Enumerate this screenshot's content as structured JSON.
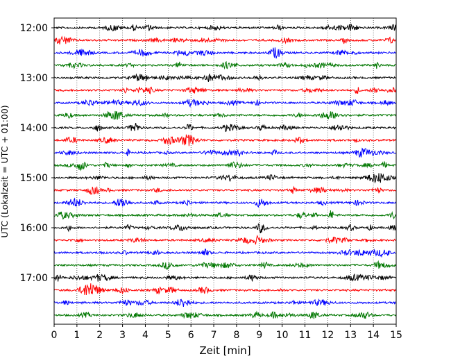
{
  "chart_data": {
    "type": "line",
    "xlabel": "Zeit  [min]",
    "ylabel": "UTC (Lokalzeit = UTC + 01:00)",
    "xlim": [
      0,
      15
    ],
    "xticks": [
      "0",
      "1",
      "2",
      "3",
      "4",
      "5",
      "6",
      "7",
      "8",
      "9",
      "10",
      "11",
      "12",
      "13",
      "14",
      "15"
    ],
    "yticks": [
      "12:00",
      "13:00",
      "14:00",
      "15:00",
      "16:00",
      "17:00"
    ],
    "grid_x": true,
    "trace_start": "12:00",
    "trace_end": "17:45",
    "trace_interval_min": 15,
    "trace_colors": [
      "#000000",
      "#ff0000",
      "#0000ff",
      "#007700"
    ]
  }
}
